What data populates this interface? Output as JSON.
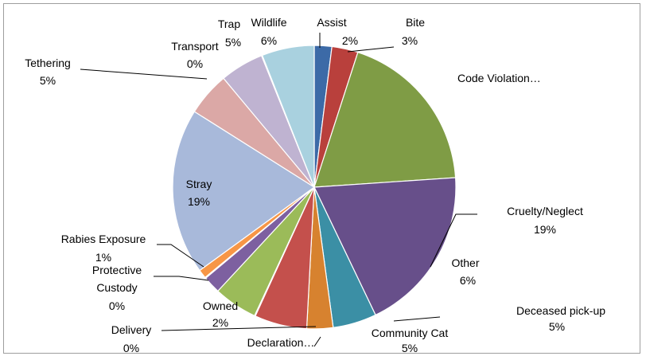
{
  "chart_data": {
    "type": "pie",
    "title": "",
    "start_angle_deg": 0,
    "direction": "clockwise",
    "legend": "none",
    "slices": [
      {
        "label": "Assist",
        "value": 2,
        "pct_label": "2%",
        "color": "#3c6aa7"
      },
      {
        "label": "Bite",
        "value": 3,
        "pct_label": "3%",
        "color": "#b9403c"
      },
      {
        "label": "Code Violation…",
        "value": 19,
        "pct_label": "",
        "color": "#7f9c45"
      },
      {
        "label": "Cruelty/Neglect",
        "value": 19,
        "pct_label": "19%",
        "color": "#674f8a"
      },
      {
        "label": "Deceased pick-up",
        "value": 5,
        "pct_label": "5%",
        "color": "#3b8fa5"
      },
      {
        "label": "Declaration…",
        "value": 3,
        "pct_label": "",
        "color": "#d7822f"
      },
      {
        "label": "Other",
        "value": 6,
        "pct_label": "6%",
        "color": "#c4504c"
      },
      {
        "label": "Delivery",
        "value": 0,
        "pct_label": "0%",
        "color": "#4a7ec0"
      },
      {
        "label": "Community Cat",
        "value": 5,
        "pct_label": "5%",
        "color": "#9bbb59"
      },
      {
        "label": "Owned",
        "value": 2,
        "pct_label": "2%",
        "color": "#7d60a0"
      },
      {
        "label": "Protective Custody",
        "value": 0,
        "pct_label": "0%",
        "color": "#4bacc6"
      },
      {
        "label": "Rabies Exposure",
        "value": 1,
        "pct_label": "1%",
        "color": "#f79646"
      },
      {
        "label": "Stray",
        "value": 19,
        "pct_label": "19%",
        "color": "#a8b9da"
      },
      {
        "label": "Tethering",
        "value": 5,
        "pct_label": "5%",
        "color": "#dba8a6"
      },
      {
        "label": "Trap",
        "value": 5,
        "pct_label": "5%",
        "color": "#bfb3d1"
      },
      {
        "label": "Transport",
        "value": 0,
        "pct_label": "0%",
        "color": "#e8c8a8"
      },
      {
        "label": "Wildlife",
        "value": 6,
        "pct_label": "6%",
        "color": "#a9d1df"
      }
    ]
  }
}
